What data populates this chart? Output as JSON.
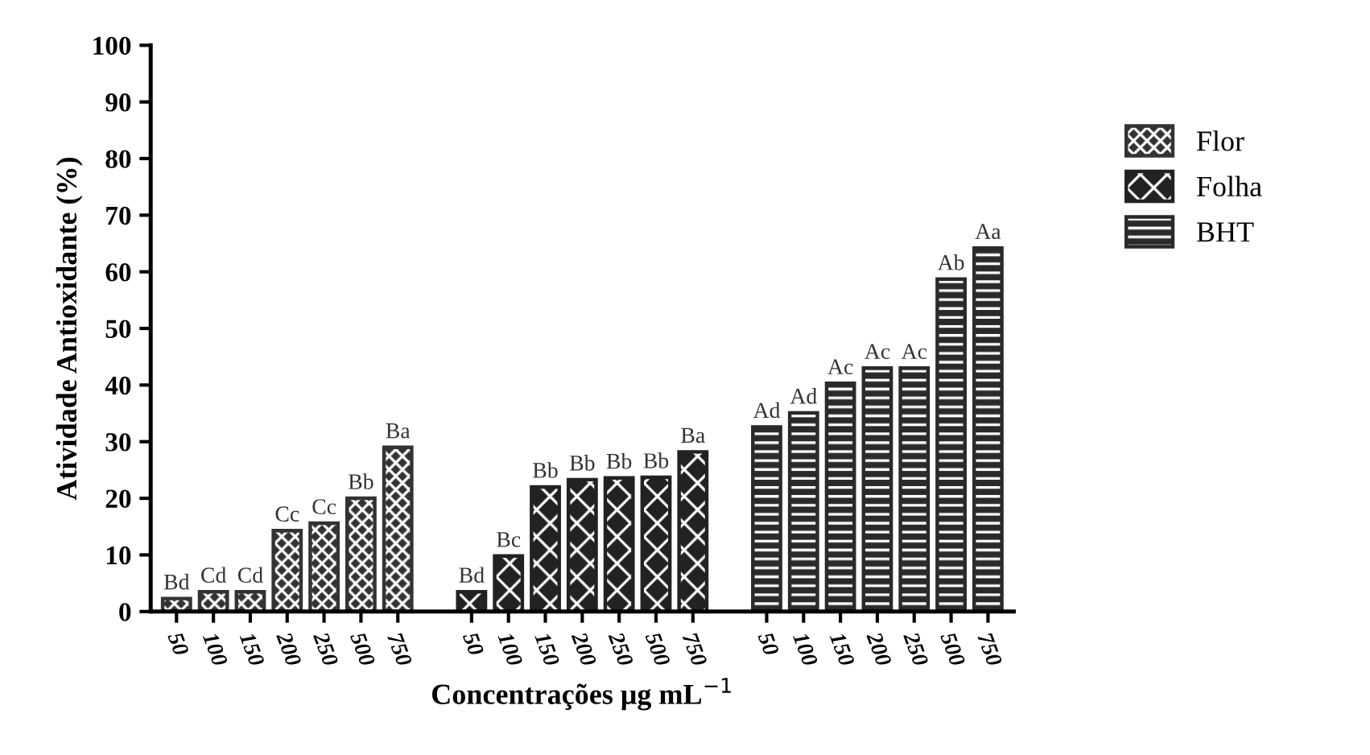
{
  "chart_data": {
    "type": "bar",
    "xlabel": "Concentrações μg mL$^{−1}$",
    "ylabel": "Atividade Antioxidante (%)",
    "categories": [
      "50",
      "100",
      "150",
      "200",
      "250",
      "500",
      "750",
      null,
      "50",
      "100",
      "150",
      "200",
      "250",
      "500",
      "750",
      null,
      "50",
      "100",
      "150",
      "200",
      "250",
      "500",
      "750"
    ],
    "ylim": [
      0,
      100
    ],
    "yticks": [
      0,
      10,
      20,
      30,
      40,
      50,
      60,
      70,
      80,
      90,
      100
    ],
    "grid": false,
    "legend": "right",
    "series": [
      {
        "name": "Flor",
        "color": "#333333",
        "values": [
          2.3,
          3.5,
          3.5,
          14.3,
          15.6,
          20,
          29,
          null,
          null,
          null,
          null,
          null,
          null,
          null,
          null,
          null,
          null,
          null,
          null,
          null,
          null,
          null,
          null
        ],
        "value_labels": [
          "Bd",
          "Cd",
          "Cd",
          "Cc",
          "Cc",
          "Bb",
          "Ba",
          null,
          null,
          null,
          null,
          null,
          null,
          null,
          null,
          null,
          null,
          null,
          null,
          null,
          null,
          null,
          null
        ]
      },
      {
        "name": "Folha",
        "color": "#222222",
        "values": [
          null,
          null,
          null,
          null,
          null,
          null,
          null,
          null,
          3.5,
          9.8,
          22,
          23.3,
          23.6,
          23.7,
          28.2,
          null,
          null,
          null,
          null,
          null,
          null,
          null,
          null
        ],
        "value_labels": [
          null,
          null,
          null,
          null,
          null,
          null,
          null,
          null,
          "Bd",
          "Bc",
          "Bb",
          "Bb",
          "Bb",
          "Bb",
          "Ba",
          null,
          null,
          null,
          null,
          null,
          null,
          null,
          null
        ]
      },
      {
        "name": "BHT",
        "color": "#2a2a2a",
        "values": [
          null,
          null,
          null,
          null,
          null,
          null,
          null,
          null,
          null,
          null,
          null,
          null,
          null,
          null,
          null,
          null,
          32.6,
          35.1,
          40.3,
          43,
          43,
          58.7,
          64.2
        ],
        "value_labels": [
          null,
          null,
          null,
          null,
          null,
          null,
          null,
          null,
          null,
          null,
          null,
          null,
          null,
          null,
          null,
          null,
          "Ad",
          "Ad",
          "Ac",
          "Ac",
          "Ac",
          "Ab",
          "Aa"
        ]
      }
    ]
  }
}
